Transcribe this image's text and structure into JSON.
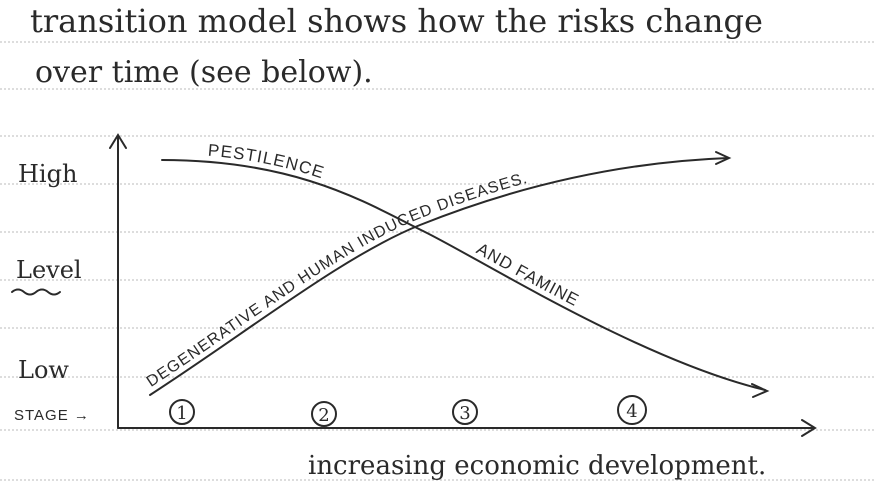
{
  "text_lines": [
    "transition model shows how the risks change",
    "over time (see below)."
  ],
  "diagram": {
    "y_axis_labels": [
      "High",
      "Level",
      "Low"
    ],
    "stage_label": "STAGE →",
    "stages": [
      "1",
      "2",
      "3",
      "4"
    ],
    "x_axis_label": "increasing economic development.",
    "curves": [
      {
        "label_parts": [
          "PESTILENCE",
          "AND FAMINE"
        ]
      },
      {
        "label": "DEGENERATIVE AND HUMAN INDUCED DISEASES."
      }
    ]
  }
}
